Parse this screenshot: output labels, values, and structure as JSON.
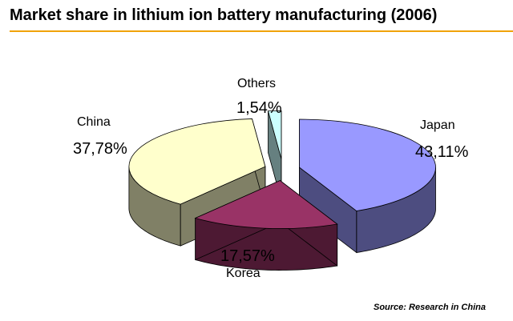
{
  "title": "Market share in lithium ion battery manufacturing (2006)",
  "source": "Source: Research in China",
  "chart_data": {
    "type": "pie",
    "title": "Market share in lithium ion battery manufacturing (2006)",
    "slices": [
      {
        "name": "Japan",
        "value": 43.11,
        "label": "43,11%",
        "color": "#9999ff",
        "side_color": "#4d4d80"
      },
      {
        "name": "Korea",
        "value": 17.57,
        "label": "17,57%",
        "color": "#993366",
        "side_color": "#4d1933"
      },
      {
        "name": "China",
        "value": 37.78,
        "label": "37,78%",
        "color": "#ffffcc",
        "side_color": "#808066"
      },
      {
        "name": "Others",
        "value": 1.54,
        "label": "1,54%",
        "color": "#ccffff",
        "side_color": "#668080"
      }
    ],
    "legend": "none",
    "style": "3d-exploded"
  }
}
